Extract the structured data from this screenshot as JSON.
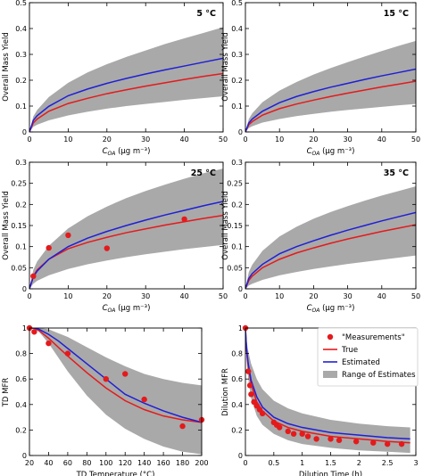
{
  "colors": {
    "true": "#e41a1c",
    "estimated": "#1f1fd6",
    "range": "#a9a9a9",
    "measurements": "#e41a1c"
  },
  "legend": {
    "placement": "top-right",
    "entries": [
      {
        "kind": "marker",
        "label": "\"Measurements\""
      },
      {
        "kind": "line-true",
        "label": "True"
      },
      {
        "kind": "line-estimated",
        "label": "Estimated"
      },
      {
        "kind": "patch",
        "label": "Range of Estimates"
      }
    ]
  },
  "chart_data": [
    {
      "type": "line",
      "annotation": "5 °C",
      "ylabel": "Overall Mass Yield",
      "xlabel_parts": [
        "C",
        "OA",
        " (μg m⁻³)"
      ],
      "xlim": [
        0,
        50
      ],
      "ylim": [
        0,
        0.5
      ],
      "xticks": [
        0,
        10,
        20,
        30,
        40,
        50
      ],
      "yticks": [
        0,
        0.1,
        0.2,
        0.3,
        0.4,
        0.5
      ],
      "grid": false,
      "x": [
        0,
        1,
        2,
        5,
        10,
        15,
        20,
        25,
        30,
        35,
        40,
        45,
        50
      ],
      "series": [
        {
          "name": "True",
          "values": [
            0,
            0.035,
            0.05,
            0.08,
            0.11,
            0.13,
            0.148,
            0.163,
            0.177,
            0.19,
            0.203,
            0.215,
            0.226
          ]
        },
        {
          "name": "Estimated",
          "values": [
            0,
            0.045,
            0.063,
            0.099,
            0.14,
            0.166,
            0.188,
            0.207,
            0.224,
            0.24,
            0.255,
            0.27,
            0.285
          ]
        }
      ],
      "range": {
        "name": "Range of Estimates",
        "lower": [
          0,
          0.02,
          0.028,
          0.045,
          0.064,
          0.078,
          0.09,
          0.1,
          0.108,
          0.116,
          0.124,
          0.131,
          0.138
        ],
        "upper": [
          0,
          0.06,
          0.085,
          0.135,
          0.19,
          0.23,
          0.262,
          0.29,
          0.315,
          0.34,
          0.362,
          0.383,
          0.405
        ]
      }
    },
    {
      "type": "line",
      "annotation": "15 °C",
      "ylabel": "Overall Mass Yield",
      "xlabel_parts": [
        "C",
        "OA",
        " (μg m⁻³)"
      ],
      "xlim": [
        0,
        50
      ],
      "ylim": [
        0,
        0.5
      ],
      "xticks": [
        0,
        10,
        20,
        30,
        40,
        50
      ],
      "yticks": [
        0,
        0.1,
        0.2,
        0.3,
        0.4,
        0.5
      ],
      "grid": false,
      "x": [
        0,
        1,
        2,
        5,
        10,
        15,
        20,
        25,
        30,
        35,
        40,
        45,
        50
      ],
      "series": [
        {
          "name": "True",
          "values": [
            0,
            0.028,
            0.04,
            0.065,
            0.09,
            0.108,
            0.123,
            0.137,
            0.15,
            0.162,
            0.174,
            0.185,
            0.196
          ]
        },
        {
          "name": "Estimated",
          "values": [
            0,
            0.035,
            0.05,
            0.08,
            0.113,
            0.137,
            0.156,
            0.173,
            0.188,
            0.203,
            0.217,
            0.23,
            0.243
          ]
        }
      ],
      "range": {
        "name": "Range of Estimates",
        "lower": [
          0,
          0.015,
          0.022,
          0.036,
          0.05,
          0.061,
          0.07,
          0.078,
          0.085,
          0.091,
          0.097,
          0.103,
          0.108
        ],
        "upper": [
          0,
          0.05,
          0.072,
          0.115,
          0.16,
          0.193,
          0.222,
          0.247,
          0.27,
          0.292,
          0.313,
          0.333,
          0.352
        ]
      }
    },
    {
      "type": "line",
      "annotation": "25 °C",
      "ylabel": "Overall Mass Yield",
      "xlabel_parts": [
        "C",
        "OA",
        " (μg m⁻³)"
      ],
      "xlim": [
        0,
        50
      ],
      "ylim": [
        0,
        0.3
      ],
      "xticks": [
        0,
        10,
        20,
        30,
        40,
        50
      ],
      "yticks": [
        0,
        0.05,
        0.1,
        0.15,
        0.2,
        0.25,
        0.3
      ],
      "grid": false,
      "x": [
        0,
        1,
        2,
        5,
        10,
        15,
        20,
        25,
        30,
        35,
        40,
        45,
        50
      ],
      "series": [
        {
          "name": "True",
          "values": [
            0,
            0.03,
            0.045,
            0.07,
            0.095,
            0.11,
            0.122,
            0.133,
            0.142,
            0.151,
            0.159,
            0.167,
            0.174
          ]
        },
        {
          "name": "Estimated",
          "values": [
            0,
            0.028,
            0.042,
            0.07,
            0.1,
            0.12,
            0.136,
            0.15,
            0.163,
            0.175,
            0.186,
            0.197,
            0.207
          ]
        }
      ],
      "range": {
        "name": "Range of Estimates",
        "lower": [
          0,
          0.012,
          0.019,
          0.032,
          0.047,
          0.058,
          0.067,
          0.075,
          0.082,
          0.088,
          0.094,
          0.099,
          0.104
        ],
        "upper": [
          0,
          0.045,
          0.065,
          0.102,
          0.143,
          0.172,
          0.195,
          0.215,
          0.232,
          0.247,
          0.261,
          0.274,
          0.285
        ]
      },
      "points": {
        "name": "\"Measurements\"",
        "x": [
          1,
          5,
          10,
          20,
          40
        ],
        "y": [
          0.03,
          0.097,
          0.127,
          0.096,
          0.165
        ]
      }
    },
    {
      "type": "line",
      "annotation": "35 °C",
      "ylabel": "Overall Mass Yield",
      "xlabel_parts": [
        "C",
        "OA",
        " (μg m⁻³)"
      ],
      "xlim": [
        0,
        50
      ],
      "ylim": [
        0,
        0.3
      ],
      "xticks": [
        0,
        10,
        20,
        30,
        40,
        50
      ],
      "yticks": [
        0,
        0.05,
        0.1,
        0.15,
        0.2,
        0.25,
        0.3
      ],
      "grid": false,
      "x": [
        0,
        1,
        2,
        5,
        10,
        15,
        20,
        25,
        30,
        35,
        40,
        45,
        50
      ],
      "series": [
        {
          "name": "True",
          "values": [
            0,
            0.02,
            0.03,
            0.05,
            0.07,
            0.085,
            0.097,
            0.108,
            0.118,
            0.127,
            0.136,
            0.144,
            0.152
          ]
        },
        {
          "name": "Estimated",
          "values": [
            0,
            0.025,
            0.036,
            0.058,
            0.083,
            0.1,
            0.114,
            0.127,
            0.139,
            0.15,
            0.161,
            0.171,
            0.181
          ]
        }
      ],
      "range": {
        "name": "Range of Estimates",
        "lower": [
          0,
          0.008,
          0.012,
          0.021,
          0.032,
          0.04,
          0.047,
          0.053,
          0.059,
          0.064,
          0.069,
          0.074,
          0.079
        ],
        "upper": [
          0,
          0.04,
          0.057,
          0.09,
          0.124,
          0.147,
          0.166,
          0.182,
          0.196,
          0.209,
          0.221,
          0.232,
          0.243
        ]
      }
    },
    {
      "type": "line",
      "ylabel": "TD MFR",
      "xlabel": "TD Temperature (°C)",
      "xlim": [
        20,
        200
      ],
      "ylim": [
        0,
        1.0
      ],
      "xticks": [
        20,
        40,
        60,
        80,
        100,
        120,
        140,
        160,
        180,
        200
      ],
      "yticks": [
        0,
        0.2,
        0.4,
        0.6,
        0.8,
        1.0
      ],
      "grid": false,
      "x": [
        20,
        25,
        30,
        40,
        50,
        60,
        80,
        100,
        120,
        140,
        160,
        180,
        200
      ],
      "series": [
        {
          "name": "True",
          "values": [
            1.0,
            1.0,
            0.98,
            0.92,
            0.85,
            0.78,
            0.65,
            0.53,
            0.43,
            0.36,
            0.31,
            0.28,
            0.26
          ]
        },
        {
          "name": "Estimated",
          "values": [
            1.0,
            1.0,
            0.99,
            0.95,
            0.9,
            0.84,
            0.72,
            0.6,
            0.48,
            0.41,
            0.35,
            0.3,
            0.26
          ]
        }
      ],
      "range": {
        "name": "Range of Estimates",
        "lower": [
          1.0,
          0.99,
          0.97,
          0.88,
          0.77,
          0.66,
          0.47,
          0.32,
          0.21,
          0.13,
          0.07,
          0.03,
          0.01
        ],
        "upper": [
          1.0,
          1.0,
          1.0,
          0.99,
          0.96,
          0.93,
          0.85,
          0.77,
          0.7,
          0.64,
          0.6,
          0.57,
          0.55
        ]
      },
      "points": {
        "name": "\"Measurements\"",
        "x": [
          20,
          25,
          40,
          60,
          100,
          120,
          140,
          180,
          200
        ],
        "y": [
          1.0,
          0.97,
          0.88,
          0.8,
          0.6,
          0.64,
          0.44,
          0.23,
          0.28
        ]
      }
    },
    {
      "type": "line",
      "ylabel": "Dilution MFR",
      "xlabel": "Dilution Time (h)",
      "xlim": [
        0,
        3.0
      ],
      "ylim": [
        0,
        1.0
      ],
      "xticks": [
        0,
        0.5,
        1.0,
        1.5,
        2.0,
        2.5,
        3.0
      ],
      "yticks": [
        0,
        0.2,
        0.4,
        0.6,
        0.8,
        1.0
      ],
      "grid": false,
      "x": [
        0,
        0.02,
        0.05,
        0.1,
        0.2,
        0.3,
        0.5,
        0.75,
        1.0,
        1.5,
        2.0,
        2.5,
        2.9
      ],
      "series": [
        {
          "name": "True",
          "values": [
            1.0,
            0.82,
            0.7,
            0.56,
            0.42,
            0.35,
            0.27,
            0.22,
            0.19,
            0.15,
            0.13,
            0.11,
            0.1
          ]
        },
        {
          "name": "Estimated",
          "values": [
            1.0,
            0.84,
            0.72,
            0.59,
            0.46,
            0.38,
            0.3,
            0.25,
            0.22,
            0.18,
            0.16,
            0.14,
            0.13
          ]
        }
      ],
      "range": {
        "name": "Range of Estimates",
        "lower": [
          1.0,
          0.75,
          0.6,
          0.45,
          0.31,
          0.24,
          0.17,
          0.12,
          0.09,
          0.06,
          0.04,
          0.03,
          0.02
        ],
        "upper": [
          1.0,
          0.9,
          0.82,
          0.72,
          0.6,
          0.52,
          0.43,
          0.37,
          0.33,
          0.28,
          0.25,
          0.23,
          0.22
        ]
      },
      "points": {
        "name": "\"Measurements\"",
        "x": [
          0,
          0.05,
          0.08,
          0.1,
          0.15,
          0.2,
          0.25,
          0.3,
          0.5,
          0.55,
          0.6,
          0.75,
          0.85,
          1.0,
          1.1,
          1.25,
          1.5,
          1.65,
          1.95,
          2.25,
          2.5,
          2.75
        ],
        "y": [
          1.0,
          0.66,
          0.55,
          0.48,
          0.42,
          0.39,
          0.36,
          0.33,
          0.26,
          0.24,
          0.22,
          0.19,
          0.17,
          0.17,
          0.15,
          0.13,
          0.13,
          0.12,
          0.11,
          0.1,
          0.09,
          0.09
        ]
      },
      "legend": true
    }
  ]
}
